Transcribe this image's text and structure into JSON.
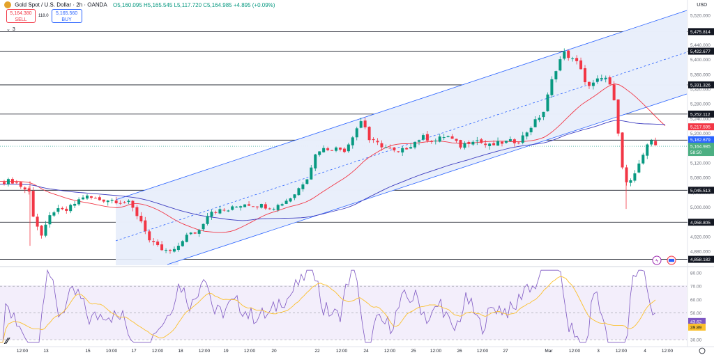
{
  "header": {
    "symbol_title": "Gold Spot / U.S. Dollar · 2h · OANDA",
    "ohlc": "O5,160.095 H5,165.545 L5,117.720 C5,164.985 +4.895 (+0.09%)"
  },
  "trade_panel": {
    "sell_price": "5,164.380",
    "sell_label": "SELL",
    "spread": "118.0",
    "buy_price": "5,165.560",
    "buy_label": "BUY"
  },
  "indicators_toggle": {
    "count": "3"
  },
  "price_axis": {
    "currency": "USD",
    "ticks": [
      "5,520.000",
      "5,480.000",
      "5,440.000",
      "5,400.000",
      "5,360.000",
      "5,320.000",
      "5,280.000",
      "5,240.000",
      "5,200.000",
      "5,160.000",
      "5,120.000",
      "5,080.000",
      "5,040.000",
      "5,000.000",
      "4,960.000",
      "4,920.000",
      "4,880.000"
    ]
  },
  "horizontal_levels": [
    "5,475.814",
    "5,422.677",
    "5,331.326",
    "5,252.112",
    "5,181.461",
    "5,045.513",
    "4,958.805",
    "4,858.182"
  ],
  "price_labels": {
    "ma_red": "5,217.595",
    "ma_blue": "5,182.679",
    "last_price": "5,164.985",
    "countdown": "58:50"
  },
  "rsi_axis": {
    "ticks": [
      "80.00",
      "70.00",
      "60.00",
      "50.00",
      "40.00",
      "30.00"
    ],
    "rsi_value": "43.62",
    "rsi_ma_value": "39.89"
  },
  "time_axis": {
    "labels": [
      "12:00",
      "13",
      "15",
      "10:00",
      "17",
      "12:00",
      "18",
      "12:00",
      "19",
      "12:00",
      "20",
      "22",
      "12:00",
      "24",
      "12:00",
      "25",
      "12:00",
      "26",
      "12:00",
      "27",
      "Mar",
      "12:00",
      "3",
      "12:00",
      "4",
      "12:00"
    ]
  },
  "colors": {
    "up": "#089981",
    "down": "#f23645",
    "channel": "#2962ff",
    "ma_red": "#f23645",
    "ma_blue": "#3b3bbf",
    "rsi_line": "#7e57c2",
    "rsi_ma": "#fbc02d"
  },
  "chart_data": {
    "type": "candlestick",
    "price_levels": [
      5475.814,
      5422.677,
      5331.326,
      5252.112,
      5181.461,
      5045.513,
      4958.805,
      4858.182
    ],
    "last_close": 5164.985,
    "ma_red_last": 5217.595,
    "ma_blue_last": 5182.679,
    "rsi_last": 43.62,
    "rsi_ma_last": 39.89
  }
}
